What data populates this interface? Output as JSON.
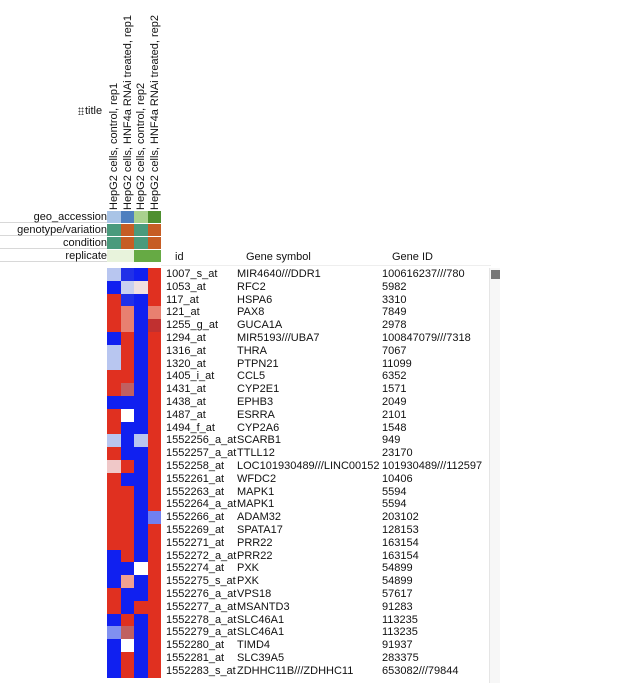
{
  "columns": [
    "HepG2 cells, control, rep1",
    "HepG2 cells, HNF4a RNAi treated, rep1",
    "HepG2 cells, control, rep2",
    "HepG2 cells, HNF4a RNAi treated, rep2"
  ],
  "title_label": "title",
  "annotations": [
    {
      "name": "geo_accession",
      "colors": [
        "#a9c4e6",
        "#4d7fbf",
        "#a9d18e",
        "#4e8f2f"
      ]
    },
    {
      "name": "genotype/variation",
      "colors": [
        "#4a9a7c",
        "#c65d24",
        "#4a9a7c",
        "#c65d24"
      ]
    },
    {
      "name": "condition",
      "colors": [
        "#4a9a7c",
        "#c65d24",
        "#4a9a7c",
        "#c65d24"
      ]
    },
    {
      "name": "replicate",
      "colors": [
        "#e8f3dc",
        "#e8f3dc",
        "#66aa44",
        "#66aa44"
      ]
    }
  ],
  "table": {
    "headers": {
      "id": "id",
      "symbol": "Gene symbol",
      "gene_id": "Gene ID"
    },
    "rows": [
      {
        "id": "1007_s_at",
        "symbol": "MIR4640///DDR1",
        "gene_id": "100616237///780"
      },
      {
        "id": "1053_at",
        "symbol": "RFC2",
        "gene_id": "5982"
      },
      {
        "id": "117_at",
        "symbol": "HSPA6",
        "gene_id": "3310"
      },
      {
        "id": "121_at",
        "symbol": "PAX8",
        "gene_id": "7849"
      },
      {
        "id": "1255_g_at",
        "symbol": "GUCA1A",
        "gene_id": "2978"
      },
      {
        "id": "1294_at",
        "symbol": "MIR5193///UBA7",
        "gene_id": "100847079///7318"
      },
      {
        "id": "1316_at",
        "symbol": "THRA",
        "gene_id": "7067"
      },
      {
        "id": "1320_at",
        "symbol": "PTPN21",
        "gene_id": "11099"
      },
      {
        "id": "1405_i_at",
        "symbol": "CCL5",
        "gene_id": "6352"
      },
      {
        "id": "1431_at",
        "symbol": "CYP2E1",
        "gene_id": "1571"
      },
      {
        "id": "1438_at",
        "symbol": "EPHB3",
        "gene_id": "2049"
      },
      {
        "id": "1487_at",
        "symbol": "ESRRA",
        "gene_id": "2101"
      },
      {
        "id": "1494_f_at",
        "symbol": "CYP2A6",
        "gene_id": "1548"
      },
      {
        "id": "1552256_a_at",
        "symbol": "SCARB1",
        "gene_id": "949"
      },
      {
        "id": "1552257_a_at",
        "symbol": "TTLL12",
        "gene_id": "23170"
      },
      {
        "id": "1552258_at",
        "symbol": "LOC101930489///LINC00152",
        "gene_id": "101930489///112597"
      },
      {
        "id": "1552261_at",
        "symbol": "WFDC2",
        "gene_id": "10406"
      },
      {
        "id": "1552263_at",
        "symbol": "MAPK1",
        "gene_id": "5594"
      },
      {
        "id": "1552264_a_at",
        "symbol": "MAPK1",
        "gene_id": "5594"
      },
      {
        "id": "1552266_at",
        "symbol": "ADAM32",
        "gene_id": "203102"
      },
      {
        "id": "1552269_at",
        "symbol": "SPATA17",
        "gene_id": "128153"
      },
      {
        "id": "1552271_at",
        "symbol": "PRR22",
        "gene_id": "163154"
      },
      {
        "id": "1552272_a_at",
        "symbol": "PRR22",
        "gene_id": "163154"
      },
      {
        "id": "1552274_at",
        "symbol": "PXK",
        "gene_id": "54899"
      },
      {
        "id": "1552275_s_at",
        "symbol": "PXK",
        "gene_id": "54899"
      },
      {
        "id": "1552276_a_at",
        "symbol": "VPS18",
        "gene_id": "57617"
      },
      {
        "id": "1552277_a_at",
        "symbol": "MSANTD3",
        "gene_id": "91283"
      },
      {
        "id": "1552278_a_at",
        "symbol": "SLC46A1",
        "gene_id": "113235"
      },
      {
        "id": "1552279_a_at",
        "symbol": "SLC46A1",
        "gene_id": "113235"
      },
      {
        "id": "1552280_at",
        "symbol": "TIMD4",
        "gene_id": "91937"
      },
      {
        "id": "1552281_at",
        "symbol": "SLC39A5",
        "gene_id": "283375"
      },
      {
        "id": "1552283_s_at",
        "symbol": "ZDHHC11B///ZDHHC11",
        "gene_id": "653082///79844"
      }
    ]
  },
  "heatmap_colors": [
    [
      "#b8c6f0",
      "#2030e8",
      "#1020f0",
      "#e03020"
    ],
    [
      "#1020f0",
      "#c8d0f0",
      "#f0e0e0",
      "#e03020"
    ],
    [
      "#e03020",
      "#2030e8",
      "#1020f0",
      "#e03020"
    ],
    [
      "#e03020",
      "#e88070",
      "#1020f0",
      "#e88070"
    ],
    [
      "#e03020",
      "#e88070",
      "#1020f0",
      "#c03030"
    ],
    [
      "#1020f0",
      "#e03020",
      "#1020f0",
      "#e03020"
    ],
    [
      "#b8c6f0",
      "#e03020",
      "#1020f0",
      "#e03020"
    ],
    [
      "#b8c6f0",
      "#e03020",
      "#1020f0",
      "#e03020"
    ],
    [
      "#e03020",
      "#e03020",
      "#1020f0",
      "#e03020"
    ],
    [
      "#e03020",
      "#c06060",
      "#1020f0",
      "#e03020"
    ],
    [
      "#1020f0",
      "#1020f0",
      "#1020f0",
      "#e03020"
    ],
    [
      "#e03020",
      "#ffffff",
      "#1020f0",
      "#e03020"
    ],
    [
      "#e03020",
      "#1020f0",
      "#1020f0",
      "#e03020"
    ],
    [
      "#b8c6f0",
      "#1020f0",
      "#b8c6f0",
      "#e03020"
    ],
    [
      "#e03020",
      "#1020f0",
      "#1020f0",
      "#e03020"
    ],
    [
      "#f0c8c8",
      "#e03020",
      "#1020f0",
      "#e03020"
    ],
    [
      "#e03020",
      "#1020f0",
      "#1020f0",
      "#e03020"
    ],
    [
      "#e03020",
      "#e03020",
      "#1020f0",
      "#e03020"
    ],
    [
      "#e03020",
      "#e03020",
      "#1020f0",
      "#e03020"
    ],
    [
      "#e03020",
      "#e03020",
      "#1020f0",
      "#7080f0"
    ],
    [
      "#e03020",
      "#e03020",
      "#1020f0",
      "#e03020"
    ],
    [
      "#e03020",
      "#e03020",
      "#1020f0",
      "#e03020"
    ],
    [
      "#1020f0",
      "#e03020",
      "#1020f0",
      "#e03020"
    ],
    [
      "#1020f0",
      "#1020f0",
      "#ffffff",
      "#e03020"
    ],
    [
      "#1020f0",
      "#f0a090",
      "#1020f0",
      "#e03020"
    ],
    [
      "#e03020",
      "#1020f0",
      "#1020f0",
      "#e03020"
    ],
    [
      "#e03020",
      "#1020f0",
      "#e03020",
      "#e03020"
    ],
    [
      "#1020f0",
      "#e03020",
      "#1020f0",
      "#e03020"
    ],
    [
      "#8090f0",
      "#c06060",
      "#1020f0",
      "#e03020"
    ],
    [
      "#1020f0",
      "#ffffff",
      "#1020f0",
      "#e03020"
    ],
    [
      "#1020f0",
      "#e03020",
      "#1020f0",
      "#e03020"
    ],
    [
      "#1020f0",
      "#e03020",
      "#1020f0",
      "#e03020"
    ]
  ]
}
